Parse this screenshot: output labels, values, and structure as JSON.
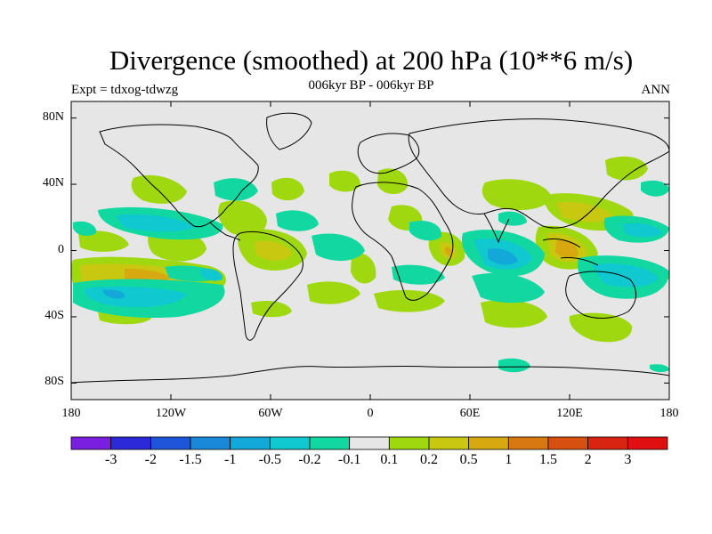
{
  "header": {
    "title": "Divergence (smoothed) at 200 hPa (10**6 m/s)",
    "subtitle": "006kyr BP - 006kyr BP",
    "left_label": "Expt = tdxog-tdwzg",
    "right_label": "ANN"
  },
  "map": {
    "projection": "cylindrical-equidistant",
    "lon_range": [
      -180,
      180
    ],
    "lat_range": [
      -90,
      90
    ],
    "y_ticks": [
      {
        "lat": 80,
        "label": "80N"
      },
      {
        "lat": 40,
        "label": "40N"
      },
      {
        "lat": 0,
        "label": "0"
      },
      {
        "lat": -40,
        "label": "40S"
      },
      {
        "lat": -80,
        "label": "80S"
      }
    ],
    "x_ticks": [
      {
        "lon": -180,
        "label": "180"
      },
      {
        "lon": -120,
        "label": "120W"
      },
      {
        "lon": -60,
        "label": "60W"
      },
      {
        "lon": 0,
        "label": "0"
      },
      {
        "lon": 60,
        "label": "60E"
      },
      {
        "lon": 120,
        "label": "120E"
      },
      {
        "lon": 180,
        "label": "180"
      }
    ],
    "background_color": "#e6e6e6"
  },
  "colorbar": {
    "labels": [
      "-3",
      "-2",
      "-1.5",
      "-1",
      "-0.5",
      "-0.2",
      "-0.1",
      "0.1",
      "0.2",
      "0.5",
      "1",
      "1.5",
      "2",
      "3"
    ],
    "colors": [
      "#7a1fe0",
      "#2a2ad8",
      "#1f55d8",
      "#1a88d8",
      "#12a8d8",
      "#10c8d0",
      "#10d8a0",
      "#e6e6e6",
      "#a0d810",
      "#c8c810",
      "#d8a810",
      "#d87810",
      "#d85010",
      "#d82410",
      "#e01010"
    ]
  }
}
